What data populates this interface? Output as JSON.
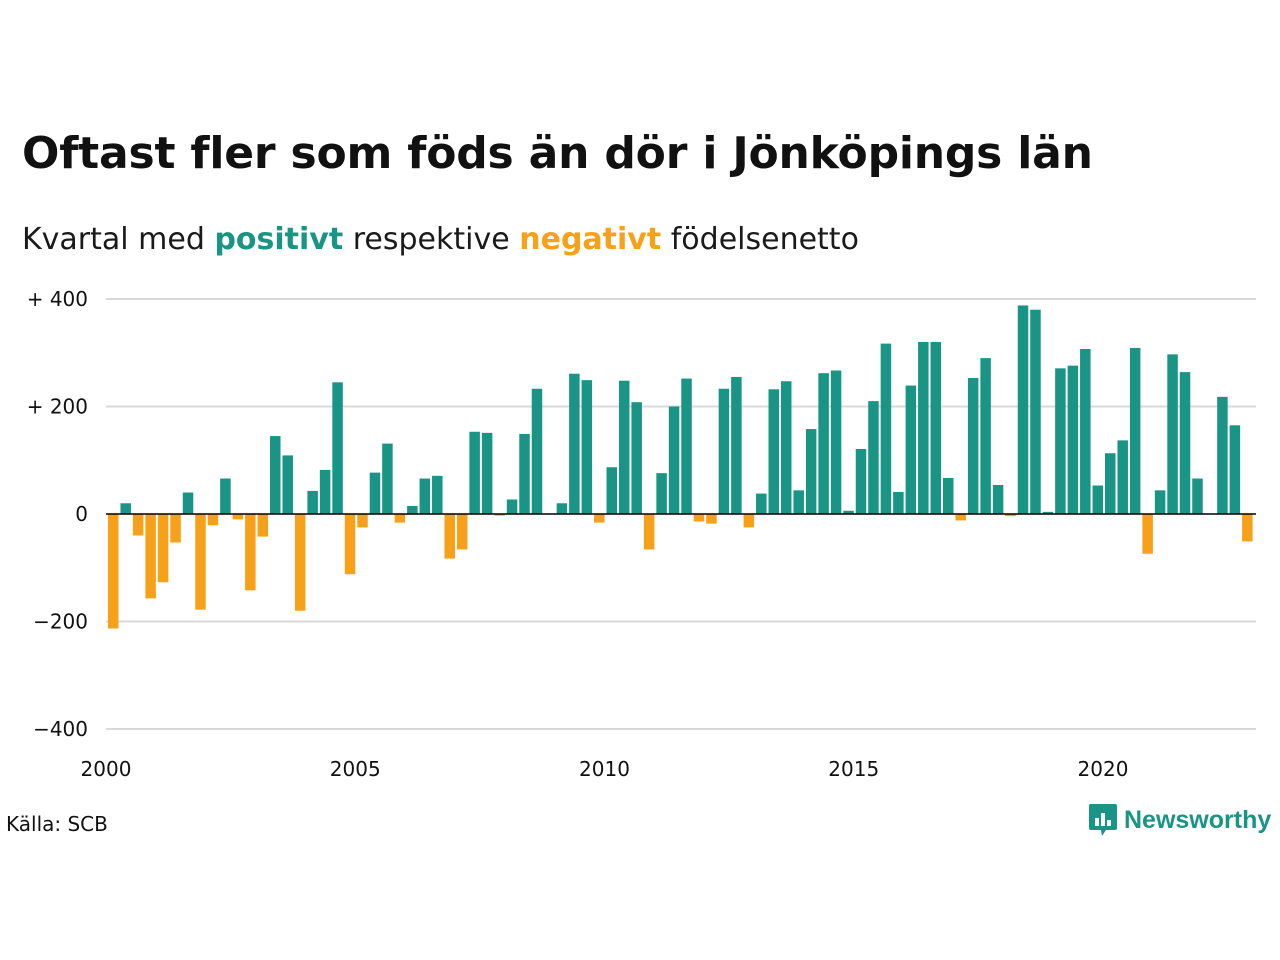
{
  "header": {
    "title": "Oftast fler som föds än dör i Jönköpings län",
    "subtitle_prefix": "Kvartal med",
    "subtitle_positive": "positivt",
    "subtitle_middle": "respektive",
    "subtitle_negative": "negativt",
    "subtitle_suffix": "födelsenetto"
  },
  "footer": {
    "source": "Källa: SCB",
    "brand": "Newsworthy",
    "brand_icon": "bar-chart-speech-bubble-icon"
  },
  "colors": {
    "positive": "#1a9585",
    "negative": "#f7a11a",
    "grid": "#d9d9d9",
    "zero_line": "#000000"
  },
  "chart_data": {
    "type": "bar",
    "title": "Oftast fler som föds än dör i Jönköpings län",
    "xlabel": "",
    "ylabel": "",
    "x_start": 2000,
    "periods_per_year": 4,
    "ylim": [
      -400,
      400
    ],
    "grid": true,
    "y_ticks": [
      {
        "value": 400,
        "label": "+ 400"
      },
      {
        "value": 200,
        "label": "+ 200"
      },
      {
        "value": 0,
        "label": "0"
      },
      {
        "value": -200,
        "label": "−200"
      },
      {
        "value": -400,
        "label": "−400"
      }
    ],
    "x_ticks": [
      {
        "value": 2000,
        "label": "2000"
      },
      {
        "value": 2005,
        "label": "2005"
      },
      {
        "value": 2010,
        "label": "2010"
      },
      {
        "value": 2015,
        "label": "2015"
      },
      {
        "value": 2020,
        "label": "2020"
      }
    ],
    "series": [
      {
        "values": [
          -213,
          20,
          -40,
          -157,
          -127,
          -53,
          40,
          -178,
          -21,
          66,
          -10,
          -142,
          -42,
          145,
          109,
          -180,
          43,
          82,
          245,
          -112,
          -25,
          77,
          131,
          -16,
          15,
          66,
          71,
          -83,
          -66,
          153,
          151,
          -3,
          27,
          149,
          233,
          0,
          20,
          261,
          249,
          -16,
          87,
          248,
          208,
          -66,
          76,
          200,
          252,
          -14,
          -18,
          233,
          255,
          -25,
          38,
          232,
          247,
          44,
          158,
          262,
          267,
          6,
          121,
          210,
          317,
          41,
          239,
          320,
          320,
          67,
          -12,
          253,
          290,
          54,
          -4,
          388,
          380,
          4,
          271,
          276,
          307,
          53,
          113,
          137,
          309,
          -74,
          44,
          297,
          264,
          66,
          0,
          218,
          165,
          -51
        ]
      }
    ]
  }
}
